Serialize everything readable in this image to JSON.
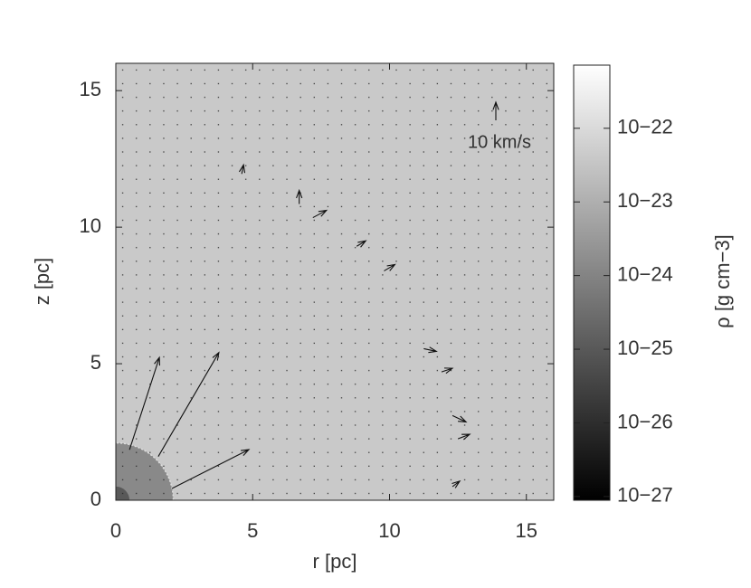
{
  "chart_data": {
    "type": "vector-field",
    "xlabel": "r [pc]",
    "ylabel": "z [pc]",
    "xlim": [
      0,
      16
    ],
    "ylim": [
      0,
      16
    ],
    "xticks": [
      0,
      5,
      10,
      15
    ],
    "yticks": [
      0,
      5,
      10,
      15
    ],
    "ambient_density": 4e-23,
    "bubble": {
      "radius": 2.1,
      "density": 1.3e-24
    },
    "core": {
      "radius": 0.5,
      "density": 1e-25
    },
    "vectors": [
      {
        "x": 0.5,
        "z": 1.85,
        "u": 16.5,
        "v": 51
      },
      {
        "x": 1.55,
        "z": 1.6,
        "u": 33.5,
        "v": 57.5
      },
      {
        "x": 2.05,
        "z": 0.43,
        "u": 42.5,
        "v": 21.5
      },
      {
        "x": 4.6,
        "z": 11.95,
        "u": 1,
        "v": 5
      },
      {
        "x": 6.7,
        "z": 10.85,
        "u": 0,
        "v": 7.5
      },
      {
        "x": 7.2,
        "z": 10.35,
        "u": 7.5,
        "v": 4
      },
      {
        "x": 8.8,
        "z": 9.3,
        "u": 5,
        "v": 3
      },
      {
        "x": 9.8,
        "z": 8.4,
        "u": 6,
        "v": 3.5
      },
      {
        "x": 11.25,
        "z": 5.55,
        "u": 7,
        "v": -1.5
      },
      {
        "x": 11.9,
        "z": 4.7,
        "u": 6,
        "v": 2
      },
      {
        "x": 12.3,
        "z": 3.1,
        "u": 7.5,
        "v": -3.5
      },
      {
        "x": 12.5,
        "z": 2.25,
        "u": 6.5,
        "v": 2.5
      },
      {
        "x": 12.3,
        "z": 0.5,
        "u": 4,
        "v": 3
      }
    ],
    "key": {
      "label": "10 km/s",
      "value": 10
    },
    "colorbar": {
      "label": "ρ [g cm−3]",
      "log": true,
      "lim": [
        8.9e-28,
        7.2e-22
      ],
      "ticks": [
        {
          "value": 1e-27,
          "label": "10−27"
        },
        {
          "value": 1e-26,
          "label": "10−26"
        },
        {
          "value": 1e-25,
          "label": "10−25"
        },
        {
          "value": 1e-24,
          "label": "10−24"
        },
        {
          "value": 1e-23,
          "label": "10−23"
        },
        {
          "value": 1e-22,
          "label": "10−22"
        }
      ]
    }
  }
}
